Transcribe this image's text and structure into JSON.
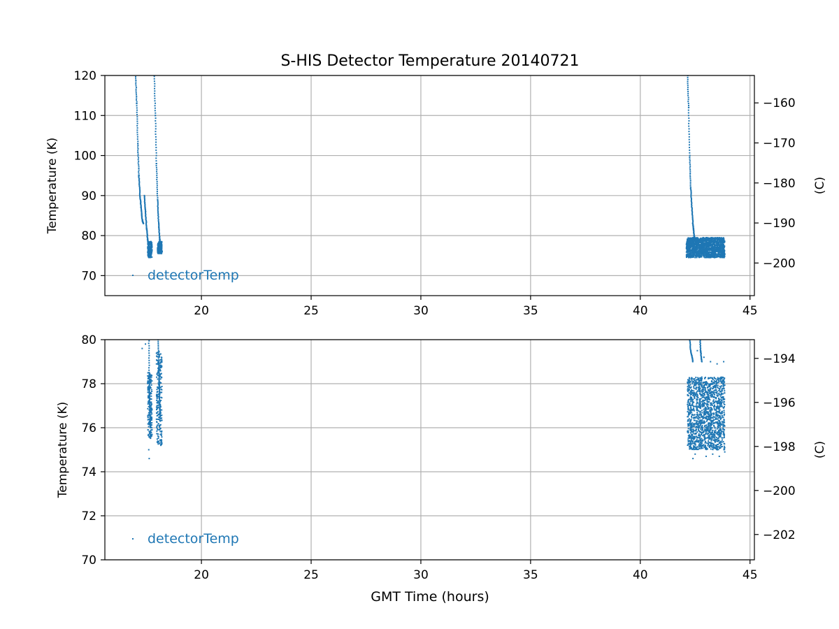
{
  "chart_data": {
    "type": "scatter",
    "title": "S-HIS Detector Temperature 20140721",
    "xlabel": "GMT Time (hours)",
    "color": "#1f77b4",
    "panels": [
      {
        "name": "top",
        "ylabel": "Temperature (K)",
        "ylabel_right": "(C)",
        "xlim": [
          15.6,
          45.2
        ],
        "ylim": [
          65,
          120
        ],
        "xticks": [
          20,
          25,
          30,
          35,
          40,
          45
        ],
        "yticks": [
          70,
          80,
          90,
          100,
          110,
          120
        ],
        "yticks_right": [
          -160,
          -170,
          -180,
          -190,
          -200
        ],
        "legend": "detectorTemp",
        "legend_loc": "lower left",
        "grid": true,
        "series": [
          {
            "name": "detectorTemp",
            "segments": [
              [
                [
                  17.0,
                  121
                ],
                [
                  17.05,
                  113
                ],
                [
                  17.1,
                  103
                ],
                [
                  17.15,
                  95
                ],
                [
                  17.2,
                  90
                ],
                [
                  17.25,
                  87
                ],
                [
                  17.3,
                  84
                ],
                [
                  17.35,
                  83
                ]
              ],
              [
                [
                  17.4,
                  90
                ],
                [
                  17.45,
                  86
                ],
                [
                  17.5,
                  82
                ],
                [
                  17.55,
                  79
                ],
                [
                  17.6,
                  77
                ],
                [
                  17.65,
                  76
                ],
                [
                  17.7,
                  75
                ]
              ],
              [
                [
                  17.85,
                  121
                ],
                [
                  17.9,
                  110
                ],
                [
                  17.95,
                  98
                ],
                [
                  18.0,
                  89
                ],
                [
                  18.05,
                  83
                ],
                [
                  18.1,
                  79
                ],
                [
                  18.15,
                  77
                ],
                [
                  18.2,
                  76
                ]
              ],
              [
                [
                  42.15,
                  121
                ],
                [
                  42.2,
                  112
                ],
                [
                  42.25,
                  100
                ],
                [
                  42.3,
                  92
                ],
                [
                  42.35,
                  87
                ],
                [
                  42.4,
                  83
                ],
                [
                  42.45,
                  80
                ],
                [
                  42.5,
                  79
                ]
              ]
            ],
            "bands": [
              {
                "x": [
                  17.55,
                  17.75
                ],
                "y": [
                  74.5,
                  78.5
                ]
              },
              {
                "x": [
                  18.0,
                  18.2
                ],
                "y": [
                  75.5,
                  78.5
                ]
              },
              {
                "x": [
                  42.1,
                  43.85
                ],
                "y": [
                  74.5,
                  79.5
                ]
              }
            ]
          }
        ]
      },
      {
        "name": "bottom",
        "ylabel": "Temperature (K)",
        "ylabel_right": "(C)",
        "xlim": [
          15.6,
          45.2
        ],
        "ylim": [
          70,
          80
        ],
        "xticks": [
          20,
          25,
          30,
          35,
          40,
          45
        ],
        "yticks": [
          70,
          72,
          74,
          76,
          78,
          80
        ],
        "yticks_right": [
          -194,
          -196,
          -198,
          -200,
          -202
        ],
        "legend": "detectorTemp",
        "legend_loc": "lower left",
        "grid": true,
        "series": [
          {
            "name": "detectorTemp",
            "segments": [
              [
                [
                  17.6,
                  80.5
                ],
                [
                  17.62,
                  78.5
                ],
                [
                  17.64,
                  77.5
                ],
                [
                  17.66,
                  76.5
                ],
                [
                  17.68,
                  76.0
                ]
              ],
              [
                [
                  18.02,
                  80.5
                ],
                [
                  18.05,
                  79.0
                ],
                [
                  18.08,
                  78.0
                ],
                [
                  18.1,
                  77.0
                ],
                [
                  18.12,
                  76.5
                ]
              ],
              [
                [
                  42.2,
                  80.5
                ],
                [
                  42.3,
                  79.5
                ],
                [
                  42.4,
                  79.0
                ]
              ],
              [
                [
                  42.7,
                  80.5
                ],
                [
                  42.75,
                  79.5
                ],
                [
                  42.8,
                  79.0
                ]
              ]
            ],
            "bands": [
              {
                "x": [
                  17.55,
                  17.75
                ],
                "y": [
                  75.5,
                  78.5
                ]
              },
              {
                "x": [
                  17.95,
                  18.2
                ],
                "y": [
                  75.2,
                  79.5
                ]
              },
              {
                "x": [
                  42.15,
                  42.75
                ],
                "y": [
                  75.0,
                  78.3
                ]
              },
              {
                "x": [
                  42.75,
                  43.85
                ],
                "y": [
                  75.0,
                  78.3
                ]
              }
            ],
            "outliers": [
              [
                17.3,
                79.6
              ],
              [
                17.45,
                79.8
              ],
              [
                17.6,
                75.0
              ],
              [
                17.62,
                74.6
              ],
              [
                18.15,
                75.2
              ],
              [
                42.4,
                74.6
              ],
              [
                42.5,
                74.8
              ],
              [
                43.0,
                74.7
              ],
              [
                43.3,
                74.8
              ],
              [
                43.6,
                74.7
              ],
              [
                43.85,
                74.9
              ],
              [
                42.6,
                79.5
              ],
              [
                42.9,
                79.2
              ],
              [
                43.2,
                79.0
              ],
              [
                43.5,
                78.9
              ],
              [
                43.8,
                79.0
              ]
            ]
          }
        ]
      }
    ]
  }
}
